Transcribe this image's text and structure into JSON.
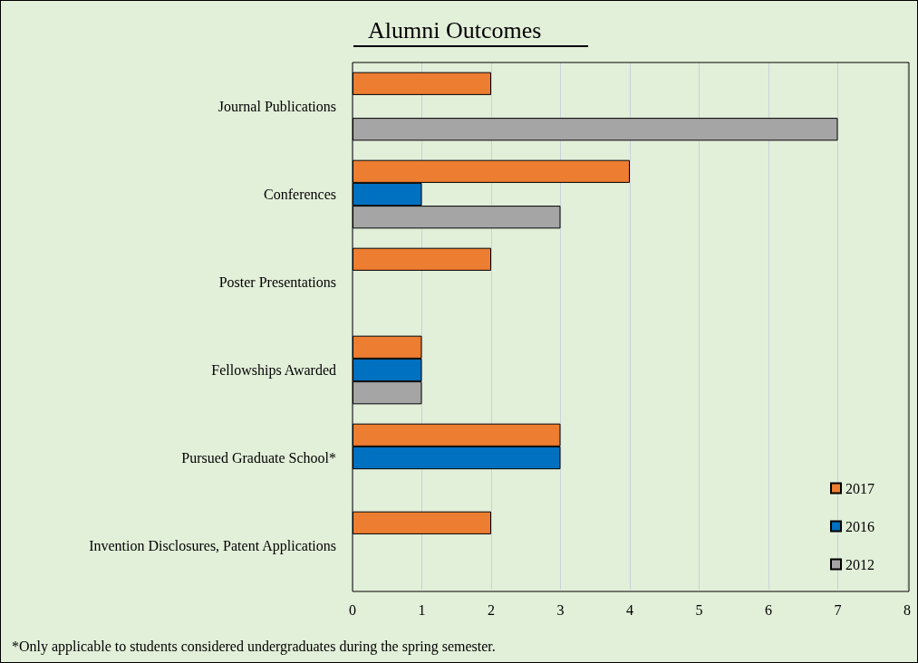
{
  "chart_data": {
    "type": "bar",
    "orientation": "horizontal",
    "title": "Alumni Outcomes",
    "categories": [
      "Journal Publications",
      "Conferences",
      "Poster Presentations",
      "Fellowships Awarded",
      "Pursued Graduate School*",
      "Invention Disclosures, Patent Applications"
    ],
    "series": [
      {
        "name": "2017",
        "color": "#ed7d31",
        "values": [
          2,
          4,
          2,
          1,
          3,
          2
        ]
      },
      {
        "name": "2016",
        "color": "#0070c0",
        "values": [
          null,
          1,
          null,
          1,
          3,
          null
        ]
      },
      {
        "name": "2012",
        "color": "#a5a5a5",
        "values": [
          7,
          3,
          null,
          1,
          null,
          null
        ]
      }
    ],
    "xlim": [
      0,
      8
    ],
    "xticks": [
      0,
      1,
      2,
      3,
      4,
      5,
      6,
      7,
      8
    ],
    "grid": "x",
    "legend": "bottom right",
    "annotations": [
      "*Only applicable to students considered undergraduates during the spring semester."
    ]
  }
}
